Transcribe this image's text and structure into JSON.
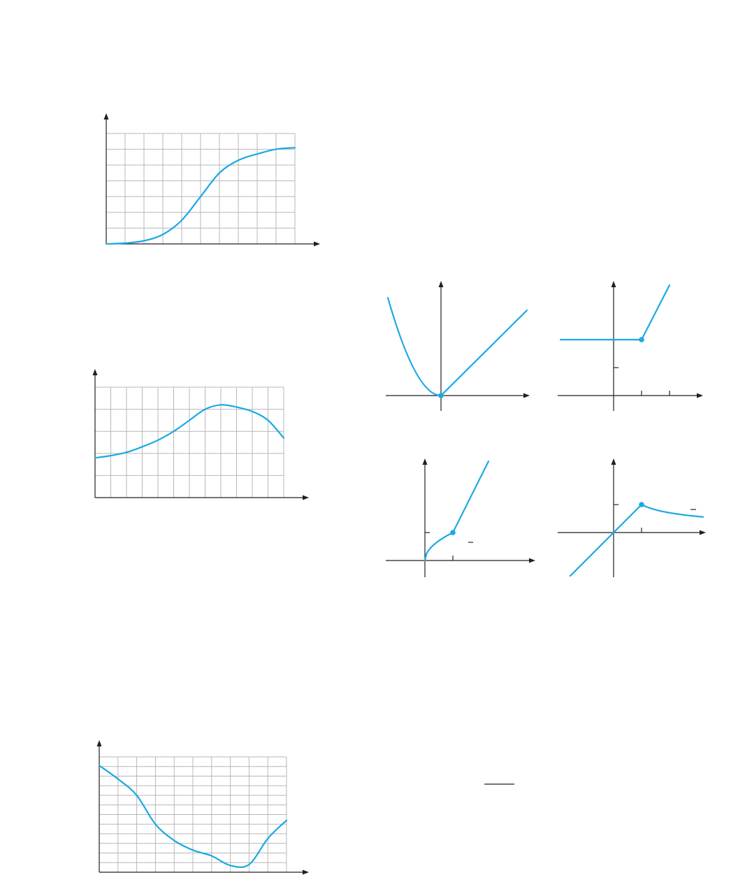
{
  "colors": {
    "curve": "#1aa9e3",
    "axis": "#231f20",
    "grid": "#b7b7b7"
  },
  "chart_data": [
    {
      "type": "line",
      "description_key": "grid-graph-1",
      "x": [
        0,
        1,
        2,
        3,
        4,
        5,
        6,
        7,
        8,
        9,
        10
      ],
      "y": [
        0.0,
        0.05,
        0.2,
        0.6,
        1.5,
        3.0,
        4.5,
        5.3,
        5.7,
        6.0,
        6.1
      ],
      "xlim": [
        0,
        10
      ],
      "ylim": [
        0,
        7
      ],
      "grid": true
    },
    {
      "type": "line",
      "description_key": "grid-graph-2",
      "x": [
        0,
        1,
        2,
        3,
        4,
        5,
        6,
        7,
        8,
        9,
        10,
        11,
        12
      ],
      "y": [
        1.8,
        1.9,
        2.05,
        2.3,
        2.6,
        3.0,
        3.5,
        4.0,
        4.2,
        4.1,
        3.9,
        3.5,
        2.7
      ],
      "xlim": [
        0,
        12
      ],
      "ylim": [
        0,
        5
      ],
      "grid": true
    },
    {
      "type": "line",
      "description_key": "grid-graph-3",
      "x": [
        0,
        1,
        2,
        3,
        4,
        5,
        6,
        7,
        8,
        9,
        10
      ],
      "y": [
        11.1,
        9.7,
        8.0,
        5.0,
        3.3,
        2.3,
        1.7,
        0.7,
        0.8,
        3.5,
        5.4
      ],
      "xlim": [
        0,
        10
      ],
      "ylim": [
        0,
        12
      ],
      "grid": true
    }
  ]
}
